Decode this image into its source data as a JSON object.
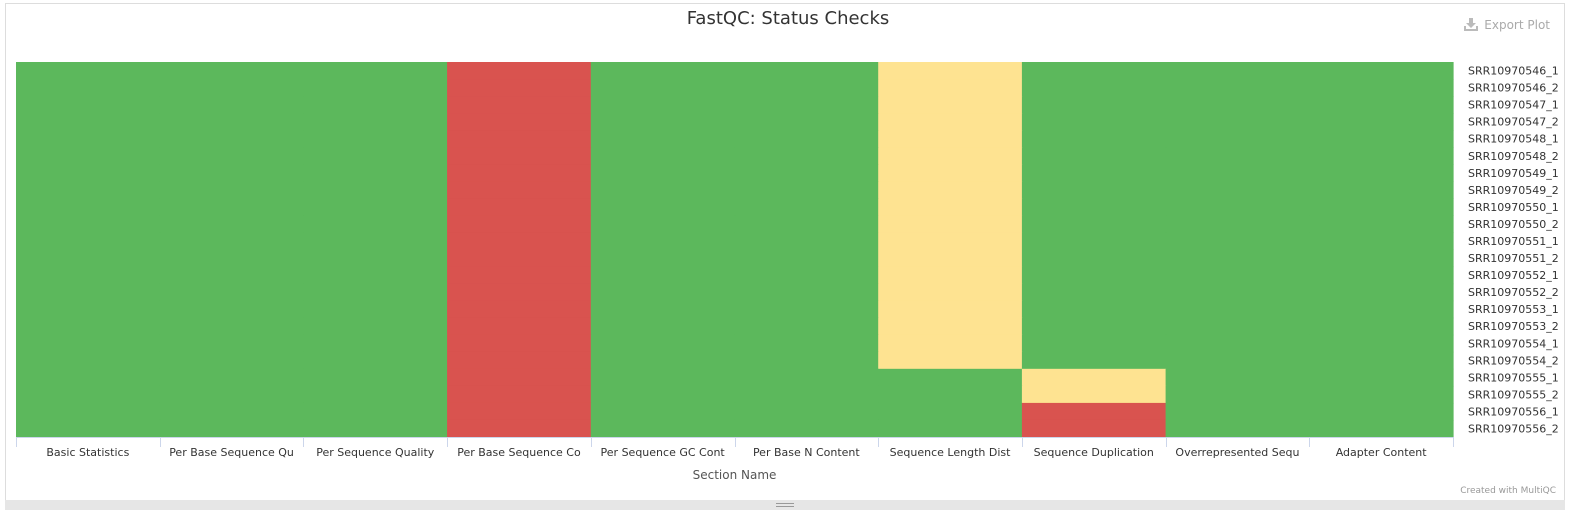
{
  "title": "FastQC: Status Checks",
  "export_label": "Export Plot",
  "credits": "Created with MultiQC",
  "chart_data": {
    "type": "heatmap",
    "title": "FastQC: Status Checks",
    "xlabel": "Section Name",
    "ylabel": "",
    "x_categories": [
      "Basic Statistics",
      "Per Base Sequence Qu",
      "Per Sequence Quality",
      "Per Base Sequence Co",
      "Per Sequence GC Cont",
      "Per Base N Content",
      "Sequence Length Dist",
      "Sequence Duplication",
      "Overrepresented Sequ",
      "Adapter Content"
    ],
    "y_categories": [
      "SRR10970546_1",
      "SRR10970546_2",
      "SRR10970547_1",
      "SRR10970547_2",
      "SRR10970548_1",
      "SRR10970548_2",
      "SRR10970549_1",
      "SRR10970549_2",
      "SRR10970550_1",
      "SRR10970550_2",
      "SRR10970551_1",
      "SRR10970551_2",
      "SRR10970552_1",
      "SRR10970552_2",
      "SRR10970553_1",
      "SRR10970553_2",
      "SRR10970554_1",
      "SRR10970554_2",
      "SRR10970555_1",
      "SRR10970555_2",
      "SRR10970556_1",
      "SRR10970556_2"
    ],
    "status_colors": {
      "pass": "#5cb85c",
      "warn": "#fee391",
      "fail": "#d9534f"
    },
    "values": [
      [
        "pass",
        "pass",
        "pass",
        "fail",
        "pass",
        "pass",
        "warn",
        "pass",
        "pass",
        "pass"
      ],
      [
        "pass",
        "pass",
        "pass",
        "fail",
        "pass",
        "pass",
        "warn",
        "pass",
        "pass",
        "pass"
      ],
      [
        "pass",
        "pass",
        "pass",
        "fail",
        "pass",
        "pass",
        "warn",
        "pass",
        "pass",
        "pass"
      ],
      [
        "pass",
        "pass",
        "pass",
        "fail",
        "pass",
        "pass",
        "warn",
        "pass",
        "pass",
        "pass"
      ],
      [
        "pass",
        "pass",
        "pass",
        "fail",
        "pass",
        "pass",
        "warn",
        "pass",
        "pass",
        "pass"
      ],
      [
        "pass",
        "pass",
        "pass",
        "fail",
        "pass",
        "pass",
        "warn",
        "pass",
        "pass",
        "pass"
      ],
      [
        "pass",
        "pass",
        "pass",
        "fail",
        "pass",
        "pass",
        "warn",
        "pass",
        "pass",
        "pass"
      ],
      [
        "pass",
        "pass",
        "pass",
        "fail",
        "pass",
        "pass",
        "warn",
        "pass",
        "pass",
        "pass"
      ],
      [
        "pass",
        "pass",
        "pass",
        "fail",
        "pass",
        "pass",
        "warn",
        "pass",
        "pass",
        "pass"
      ],
      [
        "pass",
        "pass",
        "pass",
        "fail",
        "pass",
        "pass",
        "warn",
        "pass",
        "pass",
        "pass"
      ],
      [
        "pass",
        "pass",
        "pass",
        "fail",
        "pass",
        "pass",
        "warn",
        "pass",
        "pass",
        "pass"
      ],
      [
        "pass",
        "pass",
        "pass",
        "fail",
        "pass",
        "pass",
        "warn",
        "pass",
        "pass",
        "pass"
      ],
      [
        "pass",
        "pass",
        "pass",
        "fail",
        "pass",
        "pass",
        "warn",
        "pass",
        "pass",
        "pass"
      ],
      [
        "pass",
        "pass",
        "pass",
        "fail",
        "pass",
        "pass",
        "warn",
        "pass",
        "pass",
        "pass"
      ],
      [
        "pass",
        "pass",
        "pass",
        "fail",
        "pass",
        "pass",
        "warn",
        "pass",
        "pass",
        "pass"
      ],
      [
        "pass",
        "pass",
        "pass",
        "fail",
        "pass",
        "pass",
        "warn",
        "pass",
        "pass",
        "pass"
      ],
      [
        "pass",
        "pass",
        "pass",
        "fail",
        "pass",
        "pass",
        "warn",
        "pass",
        "pass",
        "pass"
      ],
      [
        "pass",
        "pass",
        "pass",
        "fail",
        "pass",
        "pass",
        "warn",
        "pass",
        "pass",
        "pass"
      ],
      [
        "pass",
        "pass",
        "pass",
        "fail",
        "pass",
        "pass",
        "pass",
        "warn",
        "pass",
        "pass"
      ],
      [
        "pass",
        "pass",
        "pass",
        "fail",
        "pass",
        "pass",
        "pass",
        "warn",
        "pass",
        "pass"
      ],
      [
        "pass",
        "pass",
        "pass",
        "fail",
        "pass",
        "pass",
        "pass",
        "fail",
        "pass",
        "pass"
      ],
      [
        "pass",
        "pass",
        "pass",
        "fail",
        "pass",
        "pass",
        "pass",
        "fail",
        "pass",
        "pass"
      ]
    ],
    "legend": "none",
    "grid": false
  }
}
